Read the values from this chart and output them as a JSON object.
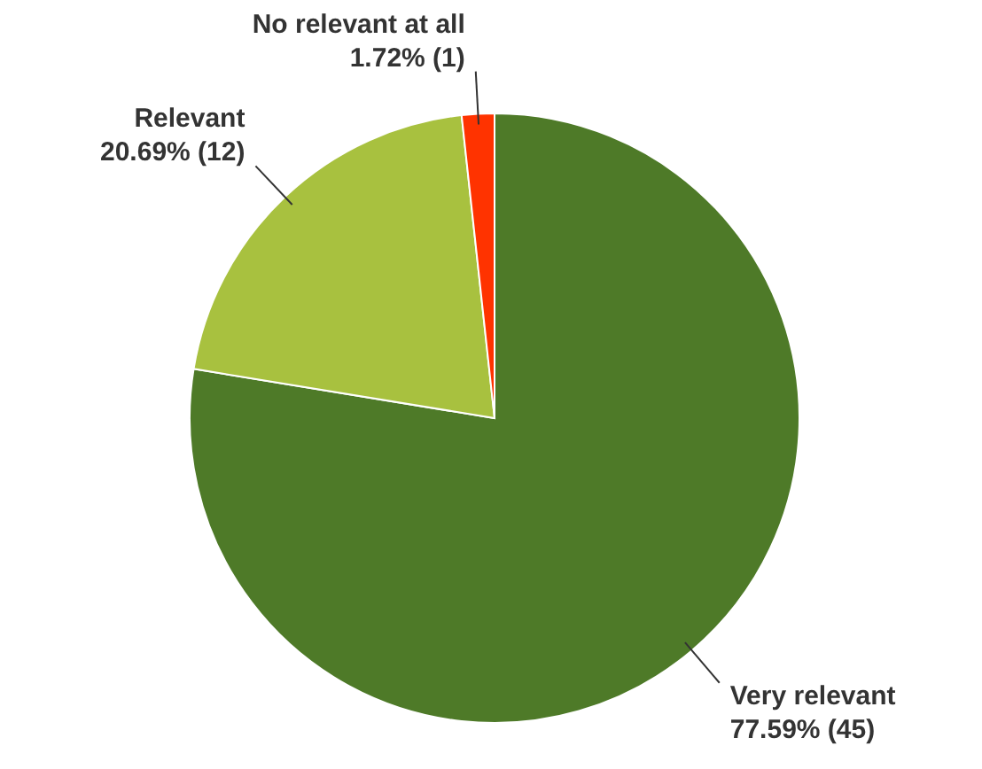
{
  "chart_data": {
    "type": "pie",
    "categories": [
      "Very relevant",
      "Relevant",
      "No relevant at all"
    ],
    "values": [
      45,
      12,
      1
    ],
    "value_labels": [
      "77.59% (45)",
      "20.69% (12)",
      "1.72% (1)"
    ],
    "colors": [
      "#4e7a28",
      "#a8c13f",
      "#ff3300"
    ]
  }
}
